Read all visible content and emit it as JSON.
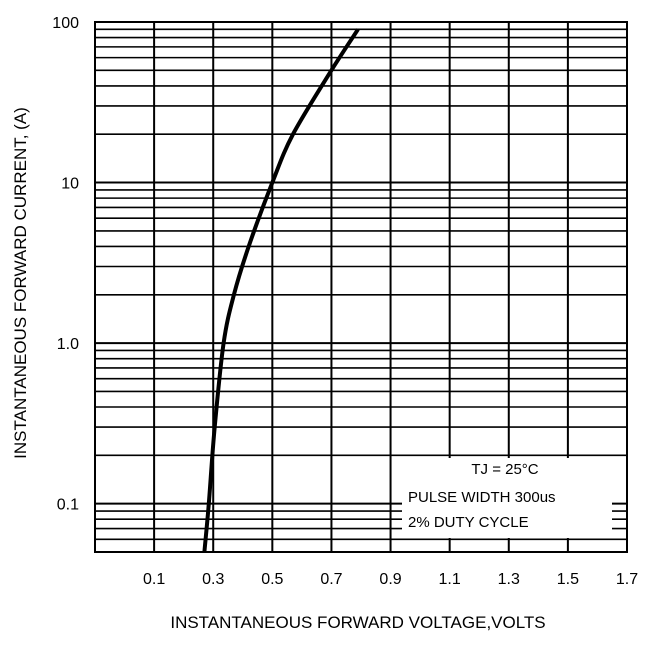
{
  "chart_data": {
    "type": "line",
    "title": "",
    "xlabel": "INSTANTANEOUS FORWARD VOLTAGE,VOLTS",
    "ylabel": "INSTANTANEOUS FORWARD CURRENT, (A)",
    "x_scale": "linear",
    "y_scale": "log",
    "xlim": [
      -0.1,
      1.7
    ],
    "ylim": [
      0.05,
      100
    ],
    "grid": true,
    "x_ticks": [
      0.1,
      0.3,
      0.5,
      0.7,
      0.9,
      1.1,
      1.3,
      1.5,
      1.7
    ],
    "x_tick_labels": [
      "0.1",
      "0.3",
      "0.5",
      "0.7",
      "0.9",
      "1.1",
      "1.3",
      "1.5",
      "1.7"
    ],
    "y_ticks": [
      0.1,
      1.0,
      10,
      100
    ],
    "y_tick_labels": [
      "0.1",
      "1.0",
      "10",
      "100"
    ],
    "series": [
      {
        "points": [
          {
            "x": 0.27,
            "y": 0.05
          },
          {
            "x": 0.285,
            "y": 0.1
          },
          {
            "x": 0.305,
            "y": 0.3
          },
          {
            "x": 0.335,
            "y": 1.0
          },
          {
            "x": 0.37,
            "y": 2.0
          },
          {
            "x": 0.42,
            "y": 4.0
          },
          {
            "x": 0.5,
            "y": 10
          },
          {
            "x": 0.57,
            "y": 20
          },
          {
            "x": 0.7,
            "y": 50
          },
          {
            "x": 0.79,
            "y": 90
          }
        ]
      }
    ],
    "annotations": [
      "TJ = 25°C",
      "PULSE WIDTH 300us",
      "2% DUTY CYCLE"
    ]
  }
}
